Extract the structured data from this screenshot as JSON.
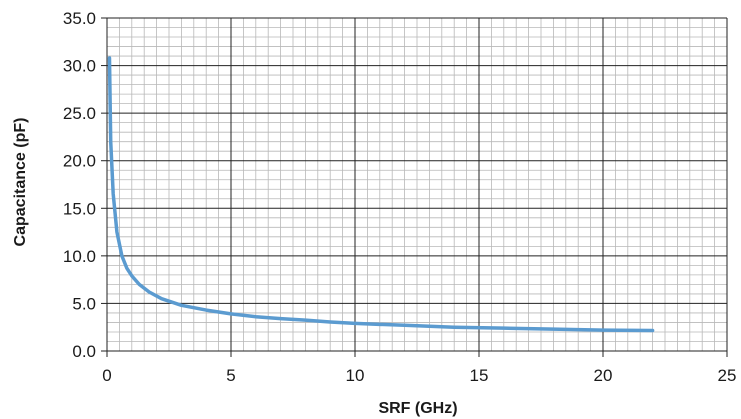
{
  "chart_data": {
    "type": "line",
    "title": "",
    "xlabel": "SRF (GHz)",
    "ylabel": "Capacitance (pF)",
    "xlim": [
      0,
      25
    ],
    "ylim": [
      0,
      35
    ],
    "x_ticks": [
      0,
      5,
      10,
      15,
      20,
      25
    ],
    "x_tick_labels": [
      "0",
      "5",
      "10",
      "15",
      "20",
      "25"
    ],
    "y_ticks": [
      0,
      5,
      10,
      15,
      20,
      25,
      30,
      35
    ],
    "y_tick_labels": [
      "0.0",
      "5.0",
      "10.0",
      "15.0",
      "20.0",
      "25.0",
      "30.0",
      "35.0"
    ],
    "x_minor_step": 0.5,
    "y_minor_step": 1,
    "grid": true,
    "legend": "none",
    "series": [
      {
        "color": "#5b9bd0",
        "x": [
          0.1,
          0.15,
          0.25,
          0.4,
          0.6,
          0.8,
          1.0,
          1.3,
          1.7,
          2.2,
          3.0,
          4.0,
          5.0,
          6.0,
          7.0,
          8.0,
          9.0,
          10.0,
          12.0,
          14.0,
          16.0,
          18.0,
          20.0,
          22.0
        ],
        "y": [
          30.8,
          22.0,
          16.5,
          12.5,
          10.0,
          8.7,
          7.9,
          7.0,
          6.2,
          5.5,
          4.8,
          4.3,
          3.9,
          3.6,
          3.4,
          3.25,
          3.05,
          2.9,
          2.7,
          2.5,
          2.4,
          2.3,
          2.2,
          2.15
        ]
      }
    ]
  }
}
